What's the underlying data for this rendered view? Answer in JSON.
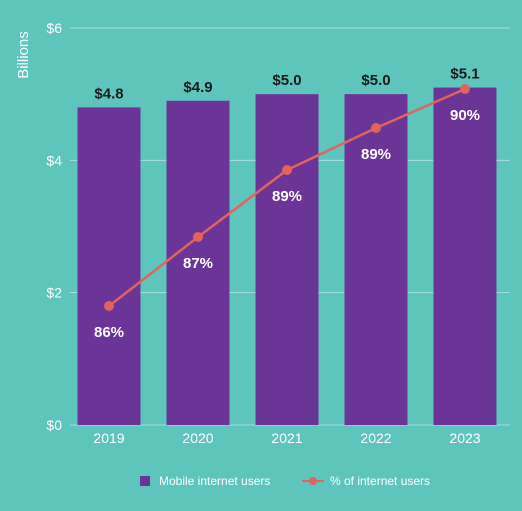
{
  "chart_data": {
    "type": "bar",
    "ylabel": "Billions",
    "categories": [
      "2019",
      "2020",
      "2021",
      "2022",
      "2023"
    ],
    "ylim": [
      0,
      6
    ],
    "yticks": [
      "$0",
      "$2",
      "$4",
      "$6"
    ],
    "grid": true,
    "series": [
      {
        "name": "Mobile internet users",
        "type": "bar",
        "values": [
          4.8,
          4.9,
          5.0,
          5.0,
          5.1
        ],
        "labels": [
          "$4.8",
          "$4.9",
          "$5.0",
          "$5.0",
          "$5.1"
        ],
        "color": "#6a3596"
      },
      {
        "name": "% of internet users",
        "type": "line",
        "values": [
          86,
          87,
          89,
          89,
          90
        ],
        "labels": [
          "86%",
          "87%",
          "89%",
          "89%",
          "90%"
        ],
        "color": "#e2625e"
      }
    ],
    "legend_placement": "bottom"
  }
}
